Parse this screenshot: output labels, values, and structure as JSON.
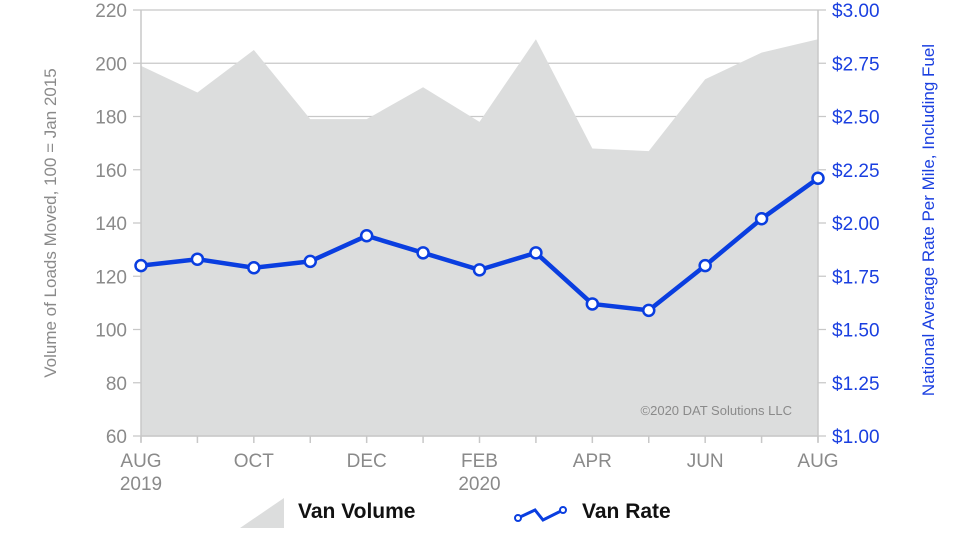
{
  "chart_data": {
    "type": "area+line",
    "x": [
      "AUG 2019",
      "SEP 2019",
      "OCT 2019",
      "NOV 2019",
      "DEC 2019",
      "JAN 2020",
      "FEB 2020",
      "MAR 2020",
      "APR 2020",
      "MAY 2020",
      "JUN 2020",
      "JUL 2020",
      "AUG 2020"
    ],
    "x_tick_labels": [
      {
        "index": 0,
        "label": "AUG",
        "sub": "2019"
      },
      {
        "index": 2,
        "label": "OCT",
        "sub": ""
      },
      {
        "index": 4,
        "label": "DEC",
        "sub": ""
      },
      {
        "index": 6,
        "label": "FEB",
        "sub": "2020"
      },
      {
        "index": 8,
        "label": "APR",
        "sub": ""
      },
      {
        "index": 10,
        "label": "JUN",
        "sub": ""
      },
      {
        "index": 12,
        "label": "AUG",
        "sub": ""
      }
    ],
    "series": [
      {
        "name": "Van Volume",
        "type": "area",
        "axis": "left",
        "color": "#dcdddd",
        "values": [
          199,
          189,
          205,
          179,
          179,
          191,
          178,
          209,
          168,
          167,
          194,
          204,
          209
        ]
      },
      {
        "name": "Van Rate",
        "type": "line",
        "axis": "right",
        "color": "#0a3ee0",
        "values": [
          1.8,
          1.83,
          1.79,
          1.82,
          1.94,
          1.86,
          1.78,
          1.86,
          1.62,
          1.59,
          1.8,
          2.02,
          2.21
        ]
      }
    ],
    "ylabel_left": "Volume of Loads Moved, 100 = Jan 2015",
    "ylabel_right": "National Average Rate Per Mile, Including Fuel",
    "ylim_left": [
      60,
      220
    ],
    "yticks_left": [
      "60",
      "80",
      "100",
      "120",
      "140",
      "160",
      "180",
      "200",
      "220"
    ],
    "ylim_right": [
      1.0,
      3.0
    ],
    "yticks_right": [
      "$1.00",
      "$1.25",
      "$1.50",
      "$1.75",
      "$2.00",
      "$2.25",
      "$2.50",
      "$2.75",
      "$3.00"
    ],
    "grid": true,
    "legend_position": "bottom",
    "annotation": "©2020 DAT Solutions LLC",
    "colors": {
      "left_axis_text": "#8a8a8a",
      "right_axis_text": "#1a3fe0",
      "grid": "#c8c8c8"
    }
  }
}
